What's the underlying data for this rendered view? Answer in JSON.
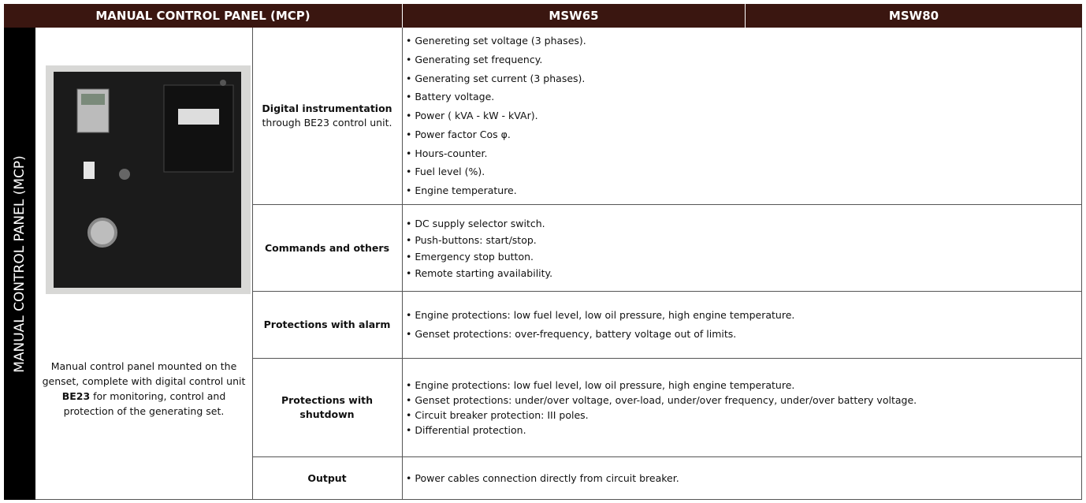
{
  "header": {
    "title": "MANUAL CONTROL PANEL (MCP)",
    "model_1": "MSW65",
    "model_2": "MSW80"
  },
  "side_label": "MANUAL CONTROL PANEL (MCP)",
  "description": {
    "before": "Manual control panel mounted on the genset, complete with digital control unit ",
    "bold": "BE23",
    "after": " for monitoring, control and protection of the generating set."
  },
  "rows": [
    {
      "label": "Digital instrumentation",
      "label_note": "through BE23 control unit.",
      "items": [
        "Genereting set voltage (3 phases).",
        "Generating set frequency.",
        "Generating set current (3 phases).",
        "Battery voltage.",
        "Power ( kVA - kW - kVAr).",
        "Power factor Cos φ.",
        "Hours-counter.",
        "Fuel level (%).",
        "Engine temperature."
      ]
    },
    {
      "label": "Commands and others",
      "items": [
        "DC supply selector switch.",
        "Push-buttons: start/stop.",
        "Emergency stop button.",
        "Remote starting availability."
      ]
    },
    {
      "label": "Protections with alarm",
      "items": [
        "Engine protections: low fuel level, low oil pressure, high engine temperature.",
        "Genset protections: over-frequency, battery voltage out of limits."
      ]
    },
    {
      "label": "Protections with shutdown",
      "items": [
        "Engine protections: low fuel level, low oil pressure, high engine temperature.",
        "Genset protections: under/over voltage, over-load, under/over frequency, under/over battery voltage.",
        "Circuit breaker protection: III poles.",
        "Differential protection."
      ]
    },
    {
      "label": "Output",
      "items": [
        "Power cables connection directly from circuit breaker."
      ]
    }
  ]
}
